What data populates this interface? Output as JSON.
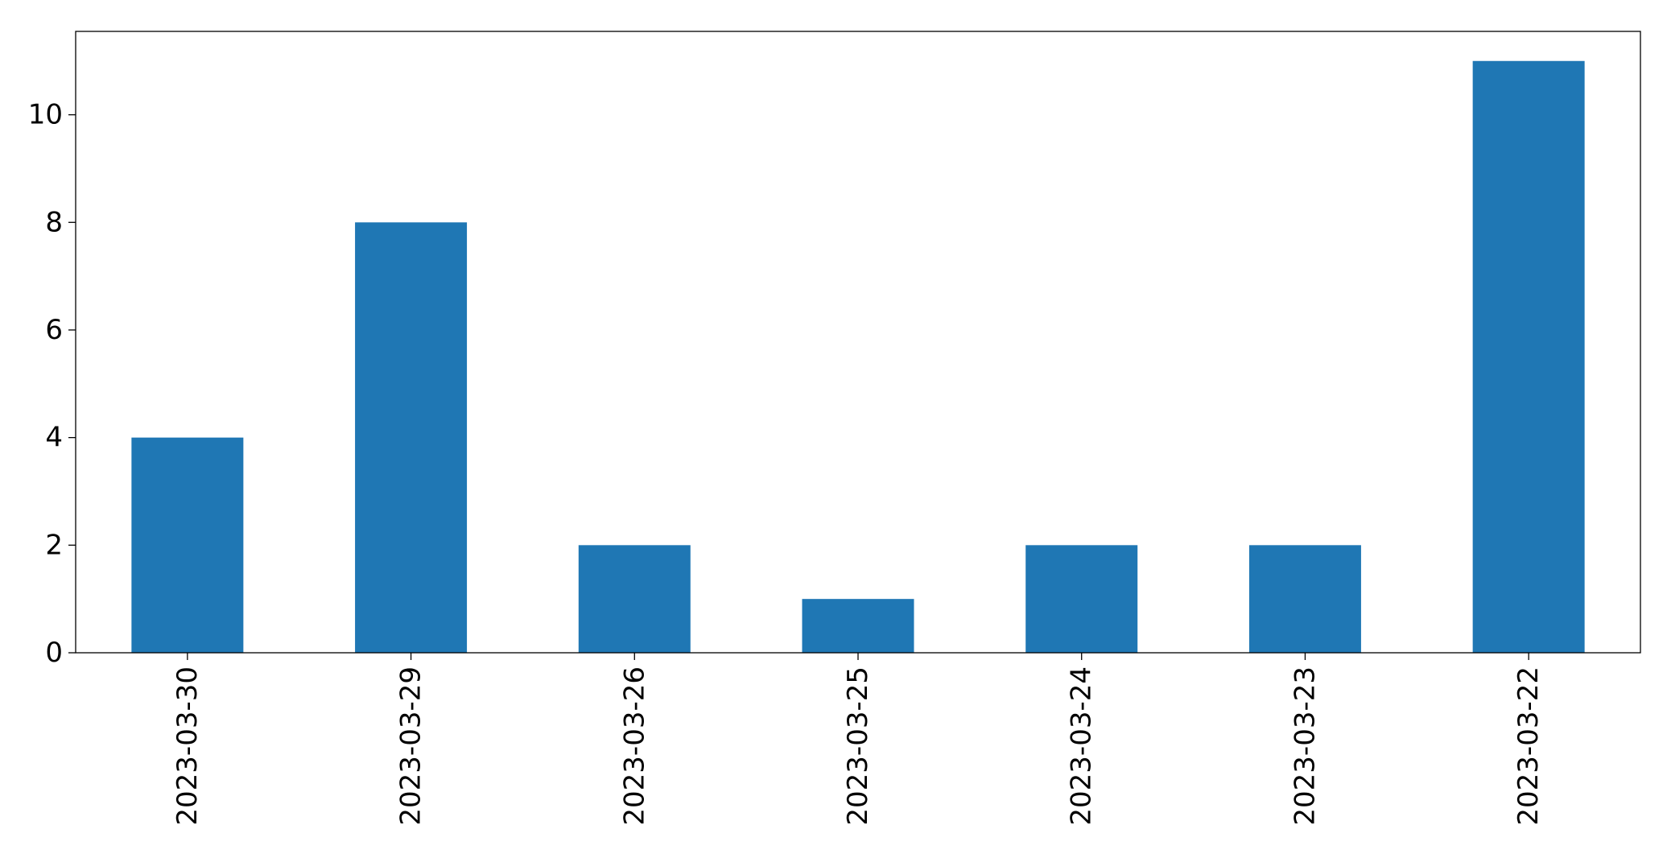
{
  "chart_data": {
    "type": "bar",
    "categories": [
      "2023-03-30",
      "2023-03-29",
      "2023-03-26",
      "2023-03-25",
      "2023-03-24",
      "2023-03-23",
      "2023-03-22"
    ],
    "values": [
      4,
      8,
      2,
      1,
      2,
      2,
      11
    ],
    "title": "",
    "xlabel": "",
    "ylabel": "",
    "ylim": [
      0,
      11.55
    ],
    "yticks": [
      0,
      2,
      4,
      6,
      8,
      10
    ],
    "grid": false,
    "legend": "none",
    "bar_color": "#1f77b4"
  }
}
